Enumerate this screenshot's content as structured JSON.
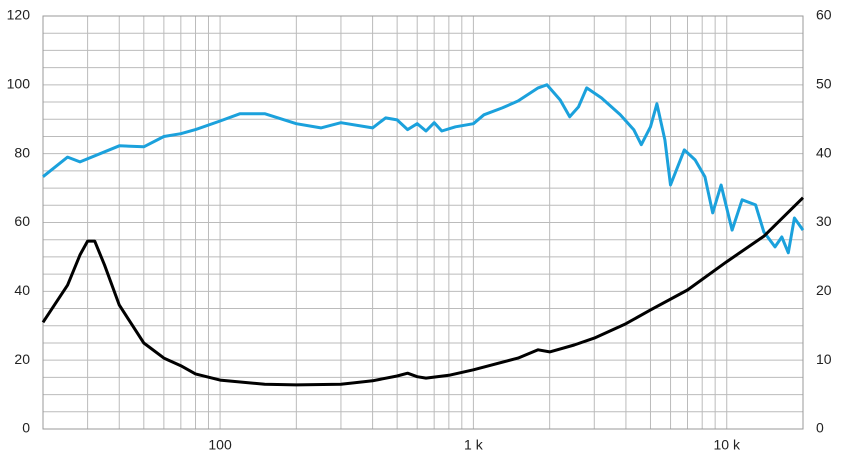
{
  "chart_data": {
    "type": "line",
    "xscale": "log",
    "xlim": [
      20,
      20000
    ],
    "xticks": [
      100,
      {
        "value": 1000,
        "label": "1 k"
      },
      {
        "value": 10000,
        "label": "10 k"
      }
    ],
    "xgrid": [
      20,
      30,
      40,
      50,
      60,
      70,
      80,
      90,
      100,
      200,
      300,
      400,
      500,
      600,
      700,
      800,
      900,
      1000,
      2000,
      3000,
      4000,
      5000,
      6000,
      7000,
      8000,
      9000,
      10000,
      20000
    ],
    "ylim": [
      0,
      120
    ],
    "yticks": [
      0,
      20,
      40,
      60,
      80,
      100,
      120
    ],
    "ygrid": [
      0,
      5,
      10,
      15,
      20,
      25,
      30,
      35,
      40,
      45,
      50,
      55,
      60,
      65,
      70,
      75,
      80,
      85,
      90,
      95,
      100,
      105,
      110,
      115,
      120
    ],
    "y2lim": [
      0,
      60
    ],
    "y2ticks": [
      0,
      10,
      20,
      30,
      40,
      50,
      60
    ],
    "grid": true,
    "series": [
      {
        "color": "#1ba1dc",
        "axis": "y",
        "x": [
          20,
          25,
          28,
          40,
          50,
          60,
          70,
          80,
          100,
          120,
          150,
          200,
          250,
          300,
          400,
          450,
          500,
          550,
          600,
          650,
          700,
          750,
          850,
          1000,
          1100,
          1300,
          1500,
          1800,
          1950,
          2200,
          2400,
          2600,
          2800,
          3200,
          3800,
          4300,
          4600,
          5000,
          5300,
          5700,
          6000,
          6800,
          7500,
          8200,
          8800,
          9500,
          10500,
          11500,
          13000,
          14000,
          15500,
          16500,
          17500,
          18500,
          20000
        ],
        "values": [
          73.3,
          79,
          77.6,
          82.3,
          82,
          85,
          85.8,
          87,
          89.5,
          91.6,
          91.6,
          88.7,
          87.5,
          89,
          87.5,
          90.4,
          89.8,
          87,
          88.7,
          86.6,
          89,
          86.6,
          87.8,
          88.7,
          91.3,
          93.3,
          95.3,
          99.1,
          100,
          95.6,
          90.7,
          93.6,
          99.1,
          96.2,
          91.3,
          86.9,
          82.6,
          87.8,
          94.5,
          84,
          70.9,
          81.1,
          78.2,
          73.3,
          62.8,
          70.9,
          57.8,
          66.6,
          65.1,
          57.3,
          52.9,
          55.8,
          51.2,
          61.3,
          57.8
        ]
      },
      {
        "color": "#000000",
        "axis": "y2",
        "x": [
          20,
          25,
          28,
          30,
          32,
          35,
          40,
          50,
          60,
          70,
          80,
          100,
          150,
          200,
          300,
          400,
          500,
          550,
          600,
          650,
          800,
          1000,
          1500,
          1800,
          2000,
          2500,
          3000,
          4000,
          5000,
          7000,
          10000,
          14000,
          20000
        ],
        "values": [
          15.5,
          20.9,
          25.3,
          27.3,
          27.3,
          23.8,
          18,
          12.5,
          10.3,
          9.2,
          8,
          7.1,
          6.5,
          6.4,
          6.5,
          7,
          7.7,
          8.1,
          7.6,
          7.4,
          7.8,
          8.6,
          10.3,
          11.5,
          11.2,
          12.2,
          13.2,
          15.3,
          17.3,
          20.2,
          24.3,
          28,
          33.6
        ]
      }
    ]
  }
}
